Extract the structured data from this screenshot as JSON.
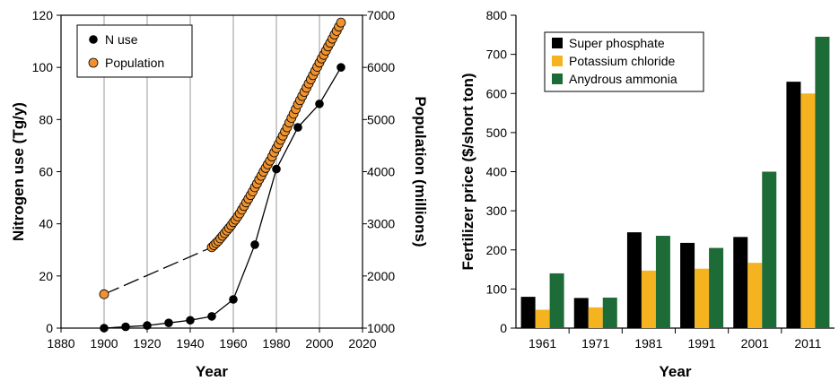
{
  "chart_data": [
    {
      "type": "scatter",
      "title": "",
      "xlabel": "Year",
      "ylabel": "Nitrogen use (Tg/y)",
      "y2label": "Population (millions)",
      "xlim": [
        1880,
        2020
      ],
      "ylim": [
        0,
        120
      ],
      "y2lim": [
        1000,
        7000
      ],
      "x_ticks": [
        "1880",
        "1900",
        "1920",
        "1940",
        "1960",
        "1980",
        "2000",
        "2020"
      ],
      "y_ticks": [
        "0",
        "20",
        "40",
        "60",
        "80",
        "100",
        "120"
      ],
      "y2_ticks": [
        "1000",
        "2000",
        "3000",
        "4000",
        "5000",
        "6000",
        "7000"
      ],
      "grid": "vertical",
      "legend_position": "top-left",
      "series": [
        {
          "name": "N use",
          "axis": "left",
          "color": "#000000",
          "x": [
            1900,
            1910,
            1920,
            1930,
            1940,
            1950,
            1960,
            1970,
            1980,
            1990,
            2000,
            2010
          ],
          "y": [
            0,
            0.5,
            1,
            2,
            3,
            4.5,
            11,
            32,
            61,
            77,
            86,
            100
          ]
        },
        {
          "name": "Population",
          "axis": "right",
          "color": "#f0932f",
          "x": [
            1900,
            1950,
            1951,
            1952,
            1953,
            1954,
            1955,
            1956,
            1957,
            1958,
            1959,
            1960,
            1961,
            1962,
            1963,
            1964,
            1965,
            1966,
            1967,
            1968,
            1969,
            1970,
            1971,
            1972,
            1973,
            1974,
            1975,
            1976,
            1977,
            1978,
            1979,
            1980,
            1981,
            1982,
            1983,
            1984,
            1985,
            1986,
            1987,
            1988,
            1989,
            1990,
            1991,
            1992,
            1993,
            1994,
            1995,
            1996,
            1997,
            1998,
            1999,
            2000,
            2001,
            2002,
            2003,
            2004,
            2005,
            2006,
            2007,
            2008,
            2009,
            2010
          ],
          "y": [
            1650,
            2550,
            2590,
            2630,
            2670,
            2720,
            2770,
            2820,
            2870,
            2920,
            2970,
            3030,
            3080,
            3140,
            3200,
            3270,
            3340,
            3410,
            3480,
            3550,
            3620,
            3700,
            3770,
            3850,
            3920,
            4000,
            4070,
            4140,
            4210,
            4290,
            4370,
            4450,
            4530,
            4610,
            4690,
            4770,
            4850,
            4940,
            5030,
            5110,
            5200,
            5290,
            5370,
            5450,
            5530,
            5610,
            5690,
            5770,
            5850,
            5930,
            6010,
            6090,
            6170,
            6240,
            6320,
            6400,
            6470,
            6550,
            6630,
            6700,
            6780,
            6860
          ]
        }
      ]
    },
    {
      "type": "bar",
      "title": "",
      "xlabel": "Year",
      "ylabel": "Fertilizer price ($/short ton)",
      "ylim": [
        0,
        800
      ],
      "y_ticks": [
        "0",
        "100",
        "200",
        "300",
        "400",
        "500",
        "600",
        "700",
        "800"
      ],
      "categories": [
        "1961",
        "1971",
        "1981",
        "1991",
        "2001",
        "2011"
      ],
      "legend_position": "top-left",
      "series": [
        {
          "name": "Super phosphate",
          "color": "#000000",
          "values": [
            80,
            77,
            245,
            218,
            233,
            630
          ]
        },
        {
          "name": "Potassium chloride",
          "color": "#f5b31f",
          "values": [
            47,
            53,
            147,
            152,
            167,
            600
          ]
        },
        {
          "name": "Anydrous ammonia",
          "color": "#1d6b36",
          "values": [
            140,
            78,
            236,
            205,
            400,
            745
          ]
        }
      ]
    }
  ]
}
